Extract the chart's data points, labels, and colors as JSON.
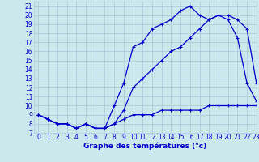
{
  "background_color": "#cce8ed",
  "grid_color": "#aaccdd",
  "line_color": "#0000cc",
  "xlabel": "Graphe des températures (°c)",
  "xlim": [
    -0.5,
    23
  ],
  "ylim": [
    7,
    21.5
  ],
  "x_ticks": [
    0,
    1,
    2,
    3,
    4,
    5,
    6,
    7,
    8,
    9,
    10,
    11,
    12,
    13,
    14,
    15,
    16,
    17,
    18,
    19,
    20,
    21,
    22,
    23
  ],
  "y_ticks": [
    7,
    8,
    9,
    10,
    11,
    12,
    13,
    14,
    15,
    16,
    17,
    18,
    19,
    20,
    21
  ],
  "curve1_x": [
    0,
    1,
    2,
    3,
    4,
    5,
    6,
    7,
    8,
    9,
    10,
    11,
    12,
    13,
    14,
    15,
    16,
    17,
    18,
    19,
    20,
    21,
    22,
    23
  ],
  "curve1_y": [
    9,
    8.5,
    8,
    8,
    7.5,
    8,
    7.5,
    7.5,
    10,
    12.5,
    16.5,
    17,
    18.5,
    19,
    19.5,
    20.5,
    21,
    20,
    19.5,
    20,
    19.5,
    17.5,
    12.5,
    10.5
  ],
  "curve2_x": [
    0,
    1,
    2,
    3,
    4,
    5,
    6,
    7,
    8,
    9,
    10,
    11,
    12,
    13,
    14,
    15,
    16,
    17,
    18,
    19,
    20,
    21,
    22,
    23
  ],
  "curve2_y": [
    9,
    8.5,
    8,
    8,
    7.5,
    8,
    7.5,
    7.5,
    8,
    9.5,
    12,
    13,
    14,
    15,
    16,
    16.5,
    17.5,
    18.5,
    19.5,
    20,
    20,
    19.5,
    18.5,
    12.5
  ],
  "curve3_x": [
    0,
    1,
    2,
    3,
    4,
    5,
    6,
    7,
    8,
    9,
    10,
    11,
    12,
    13,
    14,
    15,
    16,
    17,
    18,
    19,
    20,
    21,
    22,
    23
  ],
  "curve3_y": [
    9,
    8.5,
    8,
    8,
    7.5,
    8,
    7.5,
    7.5,
    8,
    8.5,
    9,
    9,
    9,
    9.5,
    9.5,
    9.5,
    9.5,
    9.5,
    10,
    10,
    10,
    10,
    10,
    10
  ],
  "marker": "+",
  "marker_size": 3.5,
  "marker_edge_width": 0.8,
  "line_width": 0.9,
  "tick_fontsize": 5.5,
  "label_fontsize": 6.5
}
